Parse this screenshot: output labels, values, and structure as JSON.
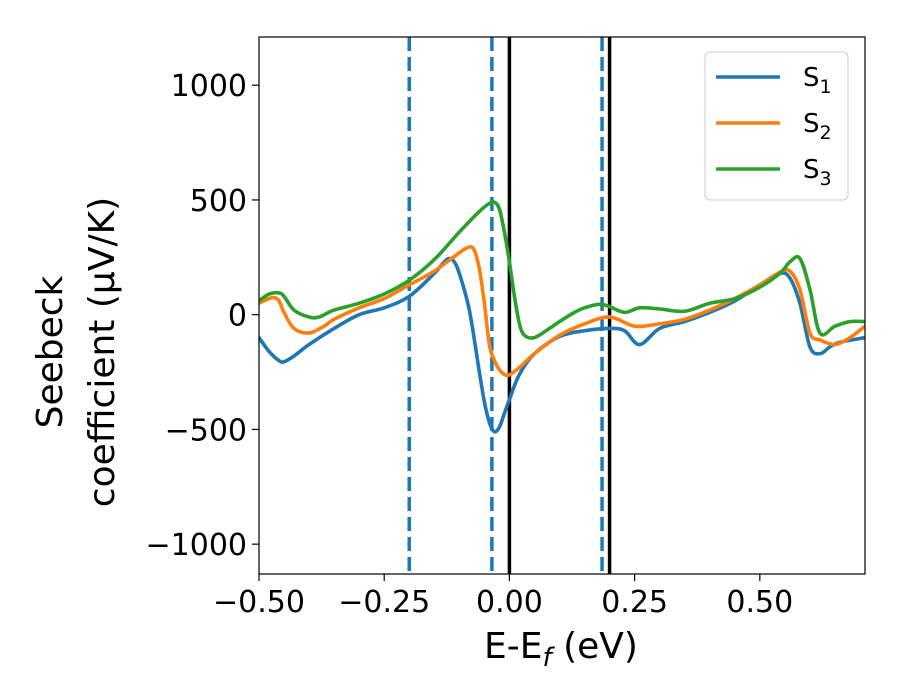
{
  "chart_data": {
    "type": "line",
    "title": "",
    "xlabel": {
      "main": "E-E",
      "sub": "f",
      "unit": " (eV)"
    },
    "ylabel": {
      "line1": "Seebeck",
      "line2": "coefficient  (μV/K)"
    },
    "xlim": [
      -0.5,
      0.71
    ],
    "ylim": [
      -1130,
      1210
    ],
    "xticks": [
      -0.5,
      -0.25,
      0.0,
      0.25,
      0.5
    ],
    "xtick_labels": [
      "−0.50",
      "−0.25",
      "0.00",
      "0.25",
      "0.50"
    ],
    "yticks": [
      -1000,
      -500,
      0,
      500,
      1000
    ],
    "ytick_labels": [
      "−1000",
      "−500",
      "0",
      "500",
      "1000"
    ],
    "grid": false,
    "legend_position": "top-right",
    "series": [
      {
        "name": "S",
        "sub": "1",
        "color": "#1f77b4",
        "x": [
          -0.5,
          -0.48,
          -0.46,
          -0.45,
          -0.43,
          -0.4,
          -0.35,
          -0.3,
          -0.25,
          -0.2,
          -0.15,
          -0.13,
          -0.12,
          -0.11,
          -0.1,
          -0.08,
          -0.06,
          -0.05,
          -0.04,
          -0.03,
          -0.02,
          -0.01,
          0.0,
          0.02,
          0.05,
          0.1,
          0.15,
          0.2,
          0.23,
          0.26,
          0.3,
          0.35,
          0.4,
          0.45,
          0.5,
          0.54,
          0.56,
          0.58,
          0.6,
          0.62,
          0.64,
          0.66,
          0.71
        ],
        "y": [
          -100,
          -160,
          -200,
          -205,
          -180,
          -130,
          -60,
          0,
          30,
          80,
          180,
          230,
          245,
          230,
          180,
          20,
          -250,
          -380,
          -470,
          -510,
          -490,
          -430,
          -370,
          -260,
          -170,
          -95,
          -70,
          -60,
          -70,
          -130,
          -60,
          -30,
          10,
          60,
          130,
          180,
          160,
          50,
          -140,
          -170,
          -140,
          -120,
          -100
        ]
      },
      {
        "name": "S",
        "sub": "2",
        "color": "#ff7f0e",
        "x": [
          -0.5,
          -0.48,
          -0.47,
          -0.46,
          -0.45,
          -0.43,
          -0.4,
          -0.37,
          -0.35,
          -0.3,
          -0.25,
          -0.2,
          -0.15,
          -0.1,
          -0.08,
          -0.07,
          -0.06,
          -0.05,
          -0.04,
          -0.03,
          -0.02,
          -0.01,
          0.0,
          0.02,
          0.05,
          0.1,
          0.15,
          0.2,
          0.25,
          0.3,
          0.35,
          0.4,
          0.45,
          0.5,
          0.54,
          0.56,
          0.58,
          0.6,
          0.62,
          0.65,
          0.68,
          0.71
        ],
        "y": [
          50,
          70,
          75,
          60,
          10,
          -60,
          -80,
          -50,
          -20,
          30,
          70,
          130,
          190,
          270,
          295,
          280,
          200,
          50,
          -130,
          -200,
          -240,
          -260,
          -262,
          -230,
          -170,
          -90,
          -40,
          -10,
          -50,
          -40,
          -20,
          20,
          70,
          130,
          185,
          190,
          110,
          -80,
          -110,
          -130,
          -100,
          -50
        ]
      },
      {
        "name": "S",
        "sub": "3",
        "color": "#2ca02c",
        "x": [
          -0.5,
          -0.48,
          -0.46,
          -0.45,
          -0.43,
          -0.4,
          -0.38,
          -0.35,
          -0.3,
          -0.25,
          -0.2,
          -0.15,
          -0.1,
          -0.06,
          -0.04,
          -0.03,
          -0.02,
          -0.01,
          0.0,
          0.01,
          0.02,
          0.03,
          0.05,
          0.08,
          0.1,
          0.13,
          0.15,
          0.18,
          0.2,
          0.23,
          0.26,
          0.3,
          0.35,
          0.4,
          0.45,
          0.5,
          0.54,
          0.56,
          0.58,
          0.6,
          0.62,
          0.65,
          0.68,
          0.71
        ],
        "y": [
          60,
          90,
          95,
          80,
          20,
          -10,
          -10,
          20,
          50,
          90,
          150,
          240,
          360,
          450,
          485,
          490,
          460,
          360,
          230,
          80,
          -40,
          -90,
          -100,
          -60,
          -30,
          10,
          30,
          45,
          35,
          10,
          30,
          25,
          15,
          50,
          70,
          120,
          180,
          230,
          245,
          110,
          -80,
          -50,
          -30,
          -30
        ]
      }
    ],
    "vlines": [
      {
        "x": -0.2,
        "style": "dashed",
        "color": "#1f77b4"
      },
      {
        "x": -0.035,
        "style": "dashed",
        "color": "#1f77b4"
      },
      {
        "x": 0.185,
        "style": "dashed",
        "color": "#1f77b4"
      },
      {
        "x": 0.0,
        "style": "solid",
        "color": "#000000"
      },
      {
        "x": 0.2,
        "style": "solid",
        "color": "#000000"
      }
    ]
  }
}
